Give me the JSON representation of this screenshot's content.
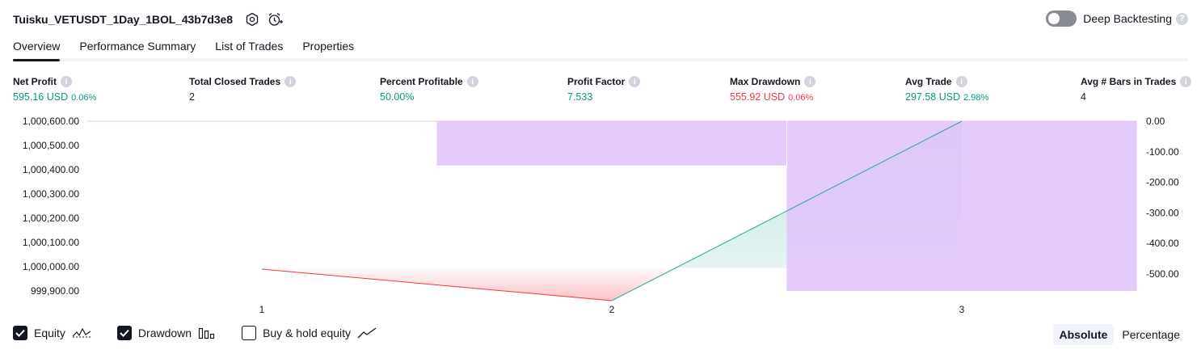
{
  "header": {
    "strategy_name": "Tuisku_VETUSDT_1Day_1BOL_43b7d3e8",
    "settings_icon": "hexagon-gear-icon",
    "alert_icon": "alarm-clock-plus-icon",
    "deep_backtesting_label": "Deep Backtesting",
    "deep_backtesting_enabled": false
  },
  "tabs": [
    {
      "label": "Overview",
      "active": true
    },
    {
      "label": "Performance Summary",
      "active": false
    },
    {
      "label": "List of Trades",
      "active": false
    },
    {
      "label": "Properties",
      "active": false
    }
  ],
  "metrics": {
    "net_profit": {
      "label": "Net Profit",
      "value": "595.16 USD",
      "pct": "0.06%"
    },
    "total_closed_trades": {
      "label": "Total Closed Trades",
      "value": "2"
    },
    "percent_profitable": {
      "label": "Percent Profitable",
      "value": "50.00%"
    },
    "profit_factor": {
      "label": "Profit Factor",
      "value": "7.533"
    },
    "max_drawdown": {
      "label": "Max Drawdown",
      "value": "555.92 USD",
      "pct": "0.06%"
    },
    "avg_trade": {
      "label": "Avg Trade",
      "value": "297.58 USD",
      "pct": "2.98%"
    },
    "avg_bars": {
      "label": "Avg # Bars in Trades",
      "value": "4"
    }
  },
  "colors": {
    "positive": "#089981",
    "negative": "#f23645",
    "drawdown_bar": "#e1c4fc",
    "equity_line": "#26a69a"
  },
  "chart_data": {
    "type": "line",
    "x": [
      1,
      2,
      3
    ],
    "x_tick_labels": [
      "1",
      "2",
      "3"
    ],
    "equity": {
      "values": [
        999990,
        999860,
        1000600
      ],
      "baseline": 999995,
      "ylim": [
        999900,
        1000600
      ],
      "y_tick_labels": [
        "1,000,600.00",
        "1,000,500.00",
        "1,000,400.00",
        "1,000,300.00",
        "1,000,200.00",
        "1,000,100.00",
        "1,000,000.00",
        "999,900.00"
      ]
    },
    "drawdown": {
      "bars": [
        {
          "from": 1.5,
          "to": 2.5,
          "value": -145
        },
        {
          "from": 2.5,
          "to": 3.5,
          "value": -555.92
        }
      ],
      "ylim": [
        -555.92,
        0
      ],
      "y_ticks": [
        0,
        -100,
        -200,
        -300,
        -400,
        -500
      ],
      "y_tick_labels": [
        "0.00",
        "-100.00",
        "-200.00",
        "-300.00",
        "-400.00",
        "-500.00"
      ]
    }
  },
  "legend": [
    {
      "label": "Equity",
      "checked": true,
      "icon": "equity-line-icon"
    },
    {
      "label": "Drawdown",
      "checked": true,
      "icon": "drawdown-bars-icon"
    },
    {
      "label": "Buy & hold equity",
      "checked": false,
      "icon": "buy-hold-line-icon"
    }
  ],
  "mode": {
    "absolute_label": "Absolute",
    "percentage_label": "Percentage",
    "selected": "absolute"
  }
}
